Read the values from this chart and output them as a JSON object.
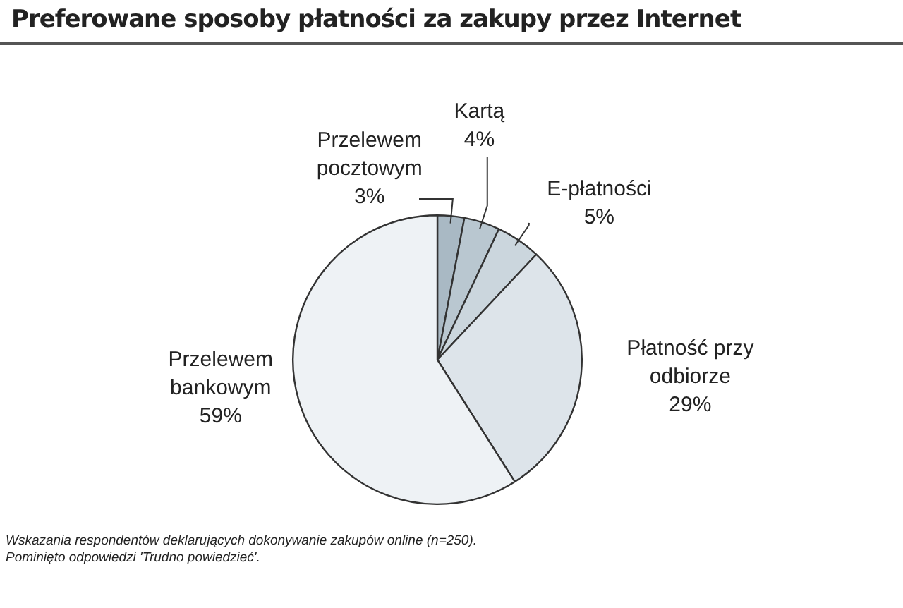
{
  "chart_data": {
    "type": "pie",
    "title": "Preferowane sposoby płatności za zakupy przez Internet",
    "categories": [
      "Przelewem pocztowym",
      "Kartą",
      "E-płatności",
      "Płatność przy odbiorze",
      "Przelewem bankowym"
    ],
    "values": [
      3,
      4,
      5,
      29,
      59
    ],
    "value_labels": [
      "3%",
      "4%",
      "5%",
      "29%",
      "59%"
    ],
    "colors": [
      "#a9b9c4",
      "#b9c7d0",
      "#cbd6dd",
      "#dde4ea",
      "#eef2f5"
    ],
    "legend": false,
    "annotations": [
      "Wskazania respondentów deklarujących dokonywanie zakupów online (n=250).",
      "Pominięto odpowiedzi 'Trudno powiedzieć'."
    ]
  }
}
